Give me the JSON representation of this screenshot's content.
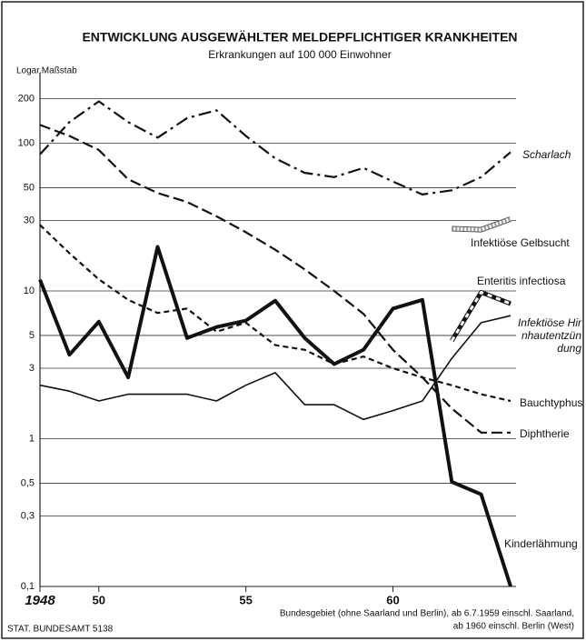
{
  "chart_data": {
    "type": "line",
    "title": "ENTWICKLUNG AUSGEWÄHLTER MELDEPFLICHTIGER KRANKHEITEN",
    "subtitle": "Erkrankungen auf 100 000 Einwohner",
    "y_label": "Logar.Maßstab",
    "source": "STAT. BUNDESAMT 5138",
    "note": [
      "Bundesgebiet (ohne Saarland und Berlin), ab 6.7.1959 einschl. Saarland,",
      "ab 1960 einschl. Berlin (West)"
    ],
    "x": [
      1948,
      1949,
      1950,
      1951,
      1952,
      1953,
      1954,
      1955,
      1956,
      1957,
      1958,
      1959,
      1960,
      1961,
      1962,
      1963,
      1964
    ],
    "xlim": [
      1948,
      1964
    ],
    "xticks": [
      {
        "value": 1948,
        "label": "1948"
      },
      {
        "value": 1950,
        "label": "50"
      },
      {
        "value": 1955,
        "label": "55"
      },
      {
        "value": 1960,
        "label": "60"
      }
    ],
    "ylim": [
      0.1,
      300
    ],
    "yscale": "log",
    "yticks": [
      {
        "value": 0.1,
        "label": "0,1"
      },
      {
        "value": 0.3,
        "label": "0,3"
      },
      {
        "value": 0.5,
        "label": "0,5"
      },
      1,
      3,
      5,
      10,
      30,
      50,
      100,
      200
    ],
    "grid": true,
    "series": [
      {
        "name": "Scharlach",
        "color": "#111111",
        "style": "dashdot",
        "values": [
          84,
          139,
          192,
          139,
          109,
          148,
          167,
          112,
          79,
          63,
          59,
          68,
          55,
          45,
          48,
          59,
          87
        ]
      },
      {
        "name": "Infektiöse Gelbsucht",
        "color": "#111111",
        "style": "hatched",
        "values": [
          null,
          null,
          null,
          null,
          null,
          null,
          null,
          null,
          null,
          null,
          null,
          null,
          null,
          null,
          26.4,
          26,
          30.7
        ]
      },
      {
        "name": "Enteritis infectiosa",
        "color": "#111111",
        "style": "striped",
        "values": [
          null,
          null,
          null,
          null,
          null,
          null,
          null,
          null,
          null,
          null,
          null,
          null,
          null,
          null,
          4.6,
          9.8,
          8.2
        ]
      },
      {
        "name": "Infektiöse Hirnhautentzündung",
        "color": "#111111",
        "style": "solid",
        "values": [
          2.3,
          2.1,
          1.8,
          2.0,
          2.0,
          2.0,
          1.8,
          2.3,
          2.8,
          1.7,
          1.7,
          1.35,
          1.55,
          1.8,
          3.5,
          6.1,
          6.8
        ]
      },
      {
        "name": "Bauchtyphus",
        "color": "#111111",
        "style": "shortdash",
        "values": [
          28,
          18,
          12,
          8.7,
          7.1,
          7.6,
          5.3,
          6.1,
          4.3,
          4,
          3.2,
          3.6,
          3,
          2.6,
          2.3,
          2,
          1.8
        ]
      },
      {
        "name": "Diphtherie",
        "color": "#111111",
        "style": "dash",
        "values": [
          133,
          112,
          90,
          57,
          46,
          40,
          32,
          25,
          19,
          14,
          10,
          7,
          4,
          2.6,
          1.6,
          1.1,
          1.1
        ]
      },
      {
        "name": "Kinderlähmung",
        "color": "#111111",
        "style": "thick",
        "values": [
          11.9,
          3.7,
          6.2,
          2.6,
          19.9,
          4.8,
          5.7,
          6.3,
          8.6,
          4.8,
          3.2,
          4,
          7.6,
          8.7,
          0.51,
          0.42,
          0.1
        ]
      }
    ]
  }
}
